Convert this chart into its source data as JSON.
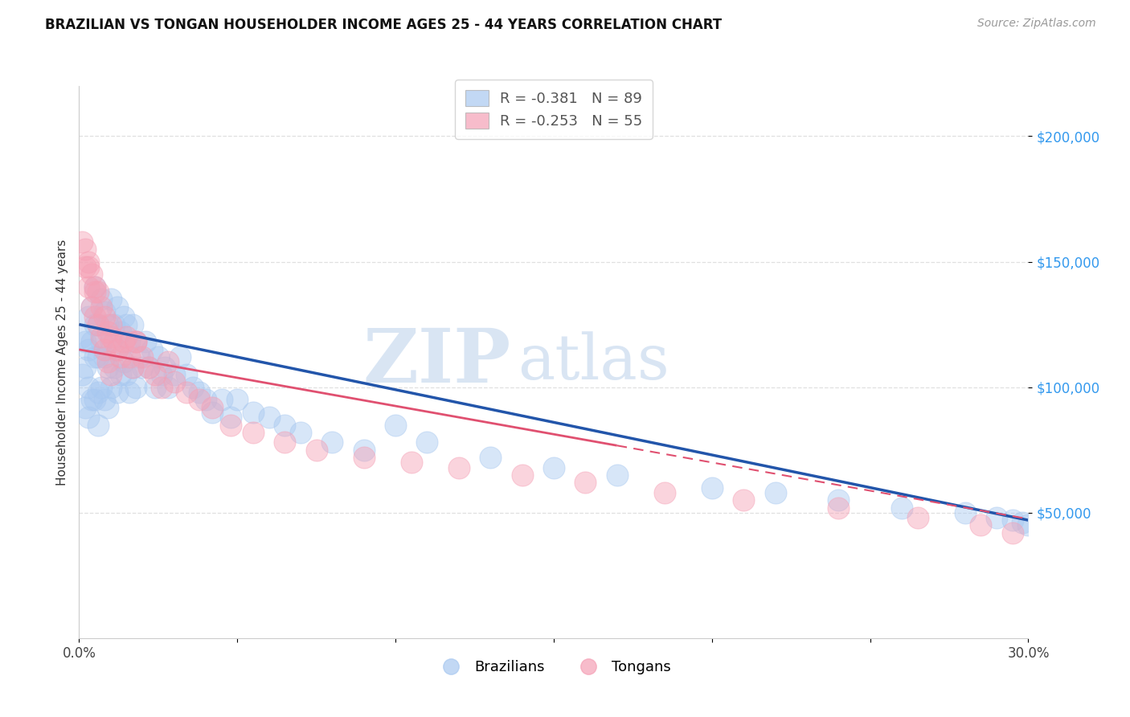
{
  "title": "BRAZILIAN VS TONGAN HOUSEHOLDER INCOME AGES 25 - 44 YEARS CORRELATION CHART",
  "source": "Source: ZipAtlas.com",
  "ylabel": "Householder Income Ages 25 - 44 years",
  "xlim": [
    0.0,
    0.3
  ],
  "ylim": [
    0,
    220000
  ],
  "yticks": [
    50000,
    100000,
    150000,
    200000
  ],
  "ytick_labels": [
    "$50,000",
    "$100,000",
    "$150,000",
    "$200,000"
  ],
  "xticks": [
    0.0,
    0.05,
    0.1,
    0.15,
    0.2,
    0.25,
    0.3
  ],
  "xtick_labels": [
    "0.0%",
    "",
    "",
    "",
    "",
    "",
    "30.0%"
  ],
  "blue_color": "#A8C8F0",
  "pink_color": "#F5A0B5",
  "blue_line_color": "#2255AA",
  "pink_line_color": "#E05070",
  "watermark_zip": "ZIP",
  "watermark_atlas": "atlas",
  "background_color": "#ffffff",
  "grid_color": "#e0e0e0",
  "legend_blue_r": "-0.381",
  "legend_blue_n": "89",
  "legend_pink_r": "-0.253",
  "legend_pink_n": "55",
  "blue_intercept": 125000,
  "blue_slope": -260000,
  "pink_intercept": 115000,
  "pink_slope": -225000,
  "brazilians_x": [
    0.001,
    0.001,
    0.002,
    0.002,
    0.002,
    0.003,
    0.003,
    0.003,
    0.003,
    0.004,
    0.004,
    0.004,
    0.005,
    0.005,
    0.005,
    0.005,
    0.006,
    0.006,
    0.006,
    0.006,
    0.007,
    0.007,
    0.007,
    0.008,
    0.008,
    0.008,
    0.009,
    0.009,
    0.009,
    0.01,
    0.01,
    0.01,
    0.011,
    0.011,
    0.012,
    0.012,
    0.012,
    0.013,
    0.013,
    0.014,
    0.014,
    0.015,
    0.015,
    0.016,
    0.016,
    0.017,
    0.017,
    0.018,
    0.018,
    0.019,
    0.02,
    0.021,
    0.022,
    0.023,
    0.024,
    0.025,
    0.026,
    0.027,
    0.028,
    0.03,
    0.032,
    0.034,
    0.036,
    0.038,
    0.04,
    0.042,
    0.045,
    0.048,
    0.05,
    0.055,
    0.06,
    0.065,
    0.07,
    0.08,
    0.09,
    0.1,
    0.11,
    0.13,
    0.15,
    0.17,
    0.2,
    0.22,
    0.24,
    0.26,
    0.28,
    0.29,
    0.295,
    0.298,
    0.3
  ],
  "brazilians_y": [
    120000,
    105000,
    118000,
    108000,
    92000,
    128000,
    115000,
    100000,
    88000,
    132000,
    118000,
    95000,
    140000,
    125000,
    112000,
    95000,
    125000,
    112000,
    98000,
    85000,
    135000,
    118000,
    100000,
    130000,
    112000,
    95000,
    125000,
    108000,
    92000,
    135000,
    118000,
    100000,
    125000,
    108000,
    132000,
    115000,
    98000,
    122000,
    105000,
    128000,
    110000,
    125000,
    105000,
    118000,
    98000,
    125000,
    108000,
    118000,
    100000,
    112000,
    108000,
    118000,
    108000,
    115000,
    100000,
    112000,
    105000,
    108000,
    100000,
    105000,
    112000,
    105000,
    100000,
    98000,
    95000,
    90000,
    95000,
    88000,
    95000,
    90000,
    88000,
    85000,
    82000,
    78000,
    75000,
    85000,
    78000,
    72000,
    68000,
    65000,
    60000,
    58000,
    55000,
    52000,
    50000,
    48000,
    47000,
    46000,
    45000
  ],
  "tongans_x": [
    0.001,
    0.002,
    0.002,
    0.003,
    0.003,
    0.004,
    0.004,
    0.005,
    0.005,
    0.006,
    0.006,
    0.007,
    0.007,
    0.008,
    0.008,
    0.009,
    0.009,
    0.01,
    0.01,
    0.011,
    0.012,
    0.013,
    0.014,
    0.015,
    0.016,
    0.017,
    0.018,
    0.02,
    0.022,
    0.024,
    0.026,
    0.028,
    0.03,
    0.034,
    0.038,
    0.042,
    0.048,
    0.055,
    0.065,
    0.075,
    0.09,
    0.105,
    0.12,
    0.14,
    0.16,
    0.185,
    0.21,
    0.24,
    0.265,
    0.285,
    0.295,
    0.003,
    0.005,
    0.01,
    0.018
  ],
  "tongans_y": [
    158000,
    155000,
    148000,
    150000,
    140000,
    145000,
    132000,
    140000,
    128000,
    138000,
    125000,
    132000,
    120000,
    128000,
    115000,
    122000,
    110000,
    120000,
    105000,
    118000,
    115000,
    112000,
    118000,
    120000,
    112000,
    108000,
    118000,
    112000,
    108000,
    105000,
    100000,
    110000,
    102000,
    98000,
    95000,
    92000,
    85000,
    82000,
    78000,
    75000,
    72000,
    70000,
    68000,
    65000,
    62000,
    58000,
    55000,
    52000,
    48000,
    45000,
    42000,
    148000,
    138000,
    125000,
    118000
  ]
}
